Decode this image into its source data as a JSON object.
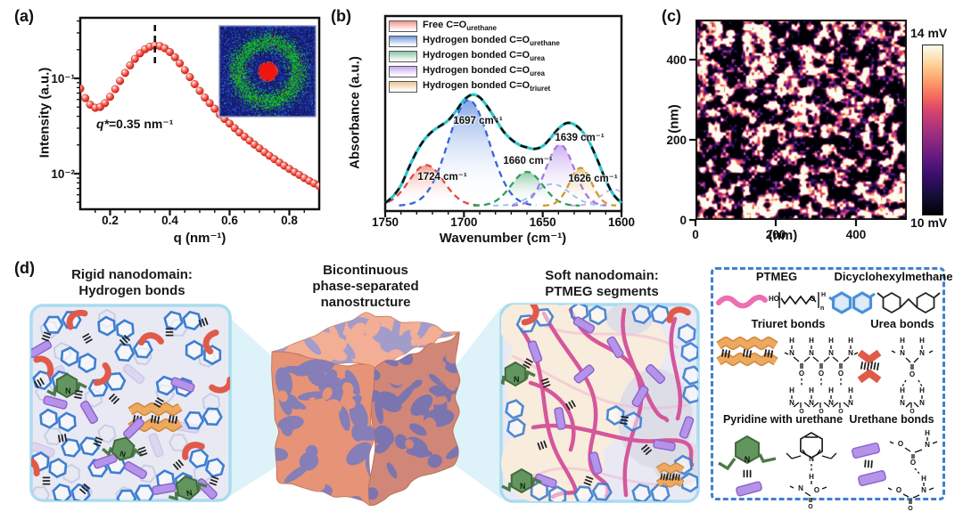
{
  "panels": {
    "a": "(a)",
    "b": "(b)",
    "c": "(c)",
    "d": "(d)"
  },
  "colors": {
    "saxs_point": "#e8392e",
    "total_curve": "#2cc5cb",
    "box_fill": "#e9e9f4",
    "box_border": "#a9dcf0",
    "cube_orange": "#f09a7c",
    "cube_purple": "#8b84bf",
    "legend_border": "#4080c8",
    "ptmeg_pink": "#d5579b",
    "hex_blue": "#3c7ed2",
    "pyridine_green": "#63955f",
    "rod_purple": "#b593e8",
    "ribbon_orange": "#eda95f",
    "carbonyl_red": "#e05a49"
  },
  "chart_data": [
    {
      "type": "scatter",
      "panel": "a",
      "xlabel": "q (nm⁻¹)",
      "ylabel": "Intensity (a.u.)",
      "x_scale": "linear",
      "y_scale": "log",
      "xlim": [
        0.1,
        0.9
      ],
      "ylim": [
        0.004,
        0.43
      ],
      "x_ticks": [
        0.2,
        0.4,
        0.6,
        0.8
      ],
      "y_ticks": [
        {
          "label": "10⁻¹",
          "value": 0.1
        },
        {
          "label": "10⁻²",
          "value": 0.01
        }
      ],
      "annotation_var": "q*",
      "annotation_value": "=0.35 nm⁻¹",
      "guide_line_q": 0.35,
      "inset": "2D SAXS scattering pattern (green ring, red beam center)",
      "series": [
        {
          "name": "SAXS intensity",
          "marker": "sphere",
          "color": "#e8392e",
          "x": [
            0.1,
            0.117,
            0.133,
            0.15,
            0.167,
            0.183,
            0.2,
            0.217,
            0.233,
            0.25,
            0.267,
            0.283,
            0.3,
            0.317,
            0.333,
            0.35,
            0.367,
            0.383,
            0.4,
            0.417,
            0.433,
            0.45,
            0.467,
            0.483,
            0.5,
            0.517,
            0.533,
            0.55,
            0.567,
            0.583,
            0.6,
            0.617,
            0.633,
            0.65,
            0.667,
            0.683,
            0.7,
            0.717,
            0.733,
            0.75,
            0.767,
            0.783,
            0.8,
            0.817,
            0.833,
            0.85,
            0.867,
            0.883,
            0.9
          ],
          "y": [
            0.078,
            0.062,
            0.053,
            0.049,
            0.05,
            0.055,
            0.064,
            0.077,
            0.094,
            0.114,
            0.137,
            0.16,
            0.183,
            0.202,
            0.215,
            0.221,
            0.218,
            0.207,
            0.189,
            0.167,
            0.144,
            0.122,
            0.103,
            0.087,
            0.074,
            0.063,
            0.055,
            0.048,
            0.042,
            0.0375,
            0.0335,
            0.03,
            0.027,
            0.0245,
            0.0222,
            0.0202,
            0.0184,
            0.0168,
            0.0154,
            0.0142,
            0.0131,
            0.0121,
            0.0112,
            0.0104,
            0.0097,
            0.009,
            0.0084,
            0.0079,
            0.0074
          ]
        }
      ]
    },
    {
      "type": "area",
      "panel": "b",
      "xlabel": "Wavenumber (cm⁻¹)",
      "ylabel": "Absorbance (a.u.)",
      "xlim": [
        1750,
        1600
      ],
      "x_ticks": [
        1750,
        1700,
        1650,
        1600
      ],
      "legend": [
        {
          "label": "Free C=O",
          "sub": "urethane",
          "color": "#f2968b"
        },
        {
          "label": "Hydrogen bonded C=O",
          "sub": "urethane",
          "color": "#6f97e0"
        },
        {
          "label": "Hydrogen bonded C=O",
          "sub": "urea",
          "color": "#8cc3a3"
        },
        {
          "label": "Hydrogen bonded C=O",
          "sub": "urea",
          "color": "#c6a9f0"
        },
        {
          "label": "Hydrogen bonded C=O",
          "sub": "triuret",
          "color": "#e8c68f"
        }
      ],
      "components": [
        {
          "name": "Free C=O urethane",
          "center": 1724,
          "height": 0.3,
          "sigma": 11,
          "stroke": "#e8453c",
          "fill": "#f4958a"
        },
        {
          "name": "H-bonded C=O urethane",
          "center": 1697,
          "height": 0.78,
          "sigma": 13,
          "stroke": "#3566d6",
          "fill": "#7da1e8"
        },
        {
          "name": "H-bonded C=O urea",
          "center": 1660,
          "height": 0.25,
          "sigma": 10,
          "stroke": "#2f9e60",
          "fill": "#8cc7a4"
        },
        {
          "name": "H-bonded C=O urea",
          "center": 1639,
          "height": 0.45,
          "sigma": 9,
          "stroke": "#a678e0",
          "fill": "#c9aaf0"
        },
        {
          "name": "H-bonded C=O triuret",
          "center": 1626,
          "height": 0.28,
          "sigma": 7,
          "stroke": "#d09a28",
          "fill": "#e8c37e"
        }
      ],
      "faint_components": [
        {
          "center": 1644,
          "height": 0.16,
          "sigma": 11,
          "stroke": "#93c7ec"
        },
        {
          "center": 1605,
          "height": 0.12,
          "sigma": 8,
          "stroke": "#c8b4ea"
        }
      ],
      "total_curve": {
        "color": "#2cc5cb",
        "overlay": "black-dashed",
        "x": [
          1750,
          1745,
          1740,
          1735,
          1730,
          1725,
          1720,
          1715,
          1710,
          1705,
          1700,
          1695,
          1690,
          1685,
          1680,
          1675,
          1670,
          1665,
          1660,
          1655,
          1650,
          1645,
          1640,
          1635,
          1630,
          1625,
          1620,
          1615,
          1610,
          1605,
          1600
        ],
        "rel": [
          0.02,
          0.07,
          0.15,
          0.28,
          0.4,
          0.49,
          0.55,
          0.59,
          0.63,
          0.7,
          0.78,
          0.82,
          0.8,
          0.73,
          0.64,
          0.55,
          0.49,
          0.45,
          0.43,
          0.42,
          0.44,
          0.5,
          0.57,
          0.61,
          0.6,
          0.55,
          0.46,
          0.33,
          0.19,
          0.08,
          0.02
        ]
      },
      "peak_labels": [
        {
          "text": "1697 cm⁻¹"
        },
        {
          "text": "1639 cm⁻¹"
        },
        {
          "text": "1660 cm⁻¹"
        },
        {
          "text": "1724 cm⁻¹"
        },
        {
          "text": "1626 cm⁻¹"
        }
      ]
    },
    {
      "type": "heatmap",
      "panel": "c",
      "xlabel": "(nm)",
      "ylabel": "(nm)",
      "x_ticks": [
        0,
        200,
        400
      ],
      "y_ticks": [
        0,
        200,
        400
      ],
      "colorbar": {
        "top": "14 mV",
        "bottom": "10 mV",
        "colormap": "magma"
      }
    }
  ],
  "panel_d": {
    "rigid_title": [
      "Rigid nanodomain:",
      "Hydrogen bonds"
    ],
    "middle_title": [
      "Bicontinuous",
      "phase-separated",
      "nanostructure"
    ],
    "soft_title": [
      "Soft nanodomain:",
      "PTMEG segments"
    ],
    "legend": {
      "items": [
        {
          "label": "PTMEG"
        },
        {
          "label": "Dicyclohexylmethane"
        },
        {
          "label": "Triuret bonds"
        },
        {
          "label": "Urea bonds"
        },
        {
          "label": "Pyridine with urethane"
        },
        {
          "label": "Urethane bonds"
        }
      ]
    }
  }
}
